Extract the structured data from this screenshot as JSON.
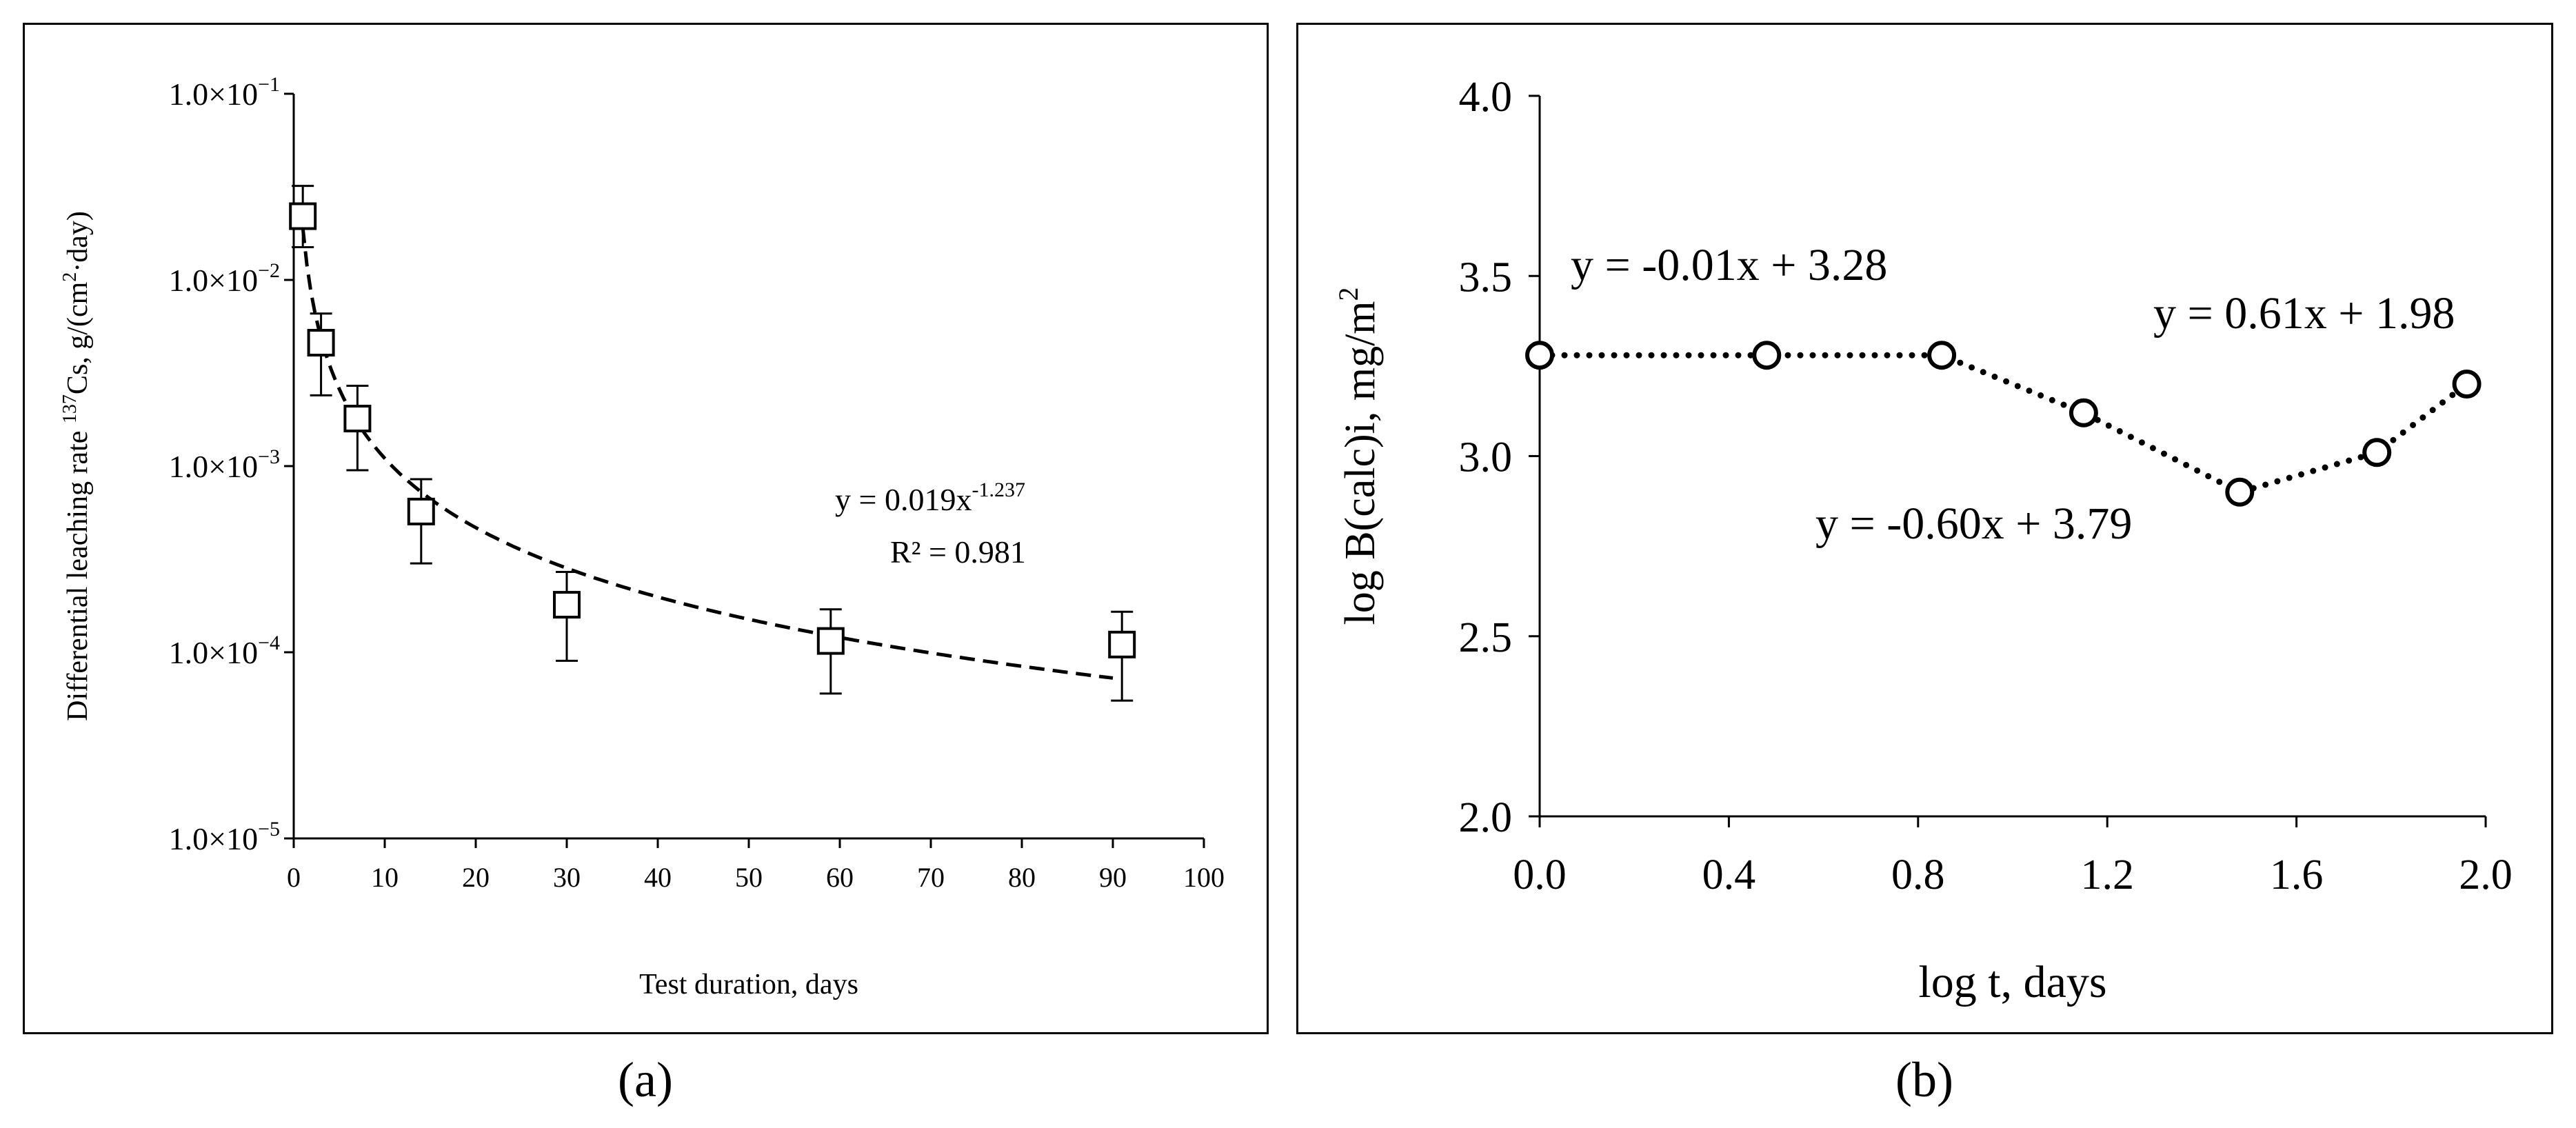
{
  "captions": {
    "a": "(a)",
    "b": "(b)"
  },
  "chart_data": [
    {
      "type": "scatter",
      "id": "a",
      "y_scale": "log",
      "xlabel": "Test duration, days",
      "ylabel_parts": {
        "pre": "Differential leaching rate ",
        "sup1": "137",
        "mid": "Cs, g/(cm",
        "sup2": "2",
        "post": "·day)"
      },
      "xlim": [
        0,
        100
      ],
      "ylim_exp": [
        -5,
        -1
      ],
      "x_ticks": [
        0,
        10,
        20,
        30,
        40,
        50,
        60,
        70,
        80,
        90,
        100
      ],
      "y_ticks": [
        {
          "exp": -1,
          "base": "1.0×10",
          "sup": "−1"
        },
        {
          "exp": -2,
          "base": "1.0×10",
          "sup": "−2"
        },
        {
          "exp": -3,
          "base": "1.0×10",
          "sup": "−3"
        },
        {
          "exp": -4,
          "base": "1.0×10",
          "sup": "−4"
        },
        {
          "exp": -5,
          "base": "1.0×10",
          "sup": "−5"
        }
      ],
      "points": [
        {
          "x": 1,
          "y": 0.022,
          "low": 0.015,
          "high": 0.032
        },
        {
          "x": 3,
          "y": 0.0046,
          "low": 0.0024,
          "high": 0.0066
        },
        {
          "x": 7,
          "y": 0.0018,
          "low": 0.00095,
          "high": 0.0027
        },
        {
          "x": 14,
          "y": 0.00057,
          "low": 0.0003,
          "high": 0.00085
        },
        {
          "x": 30,
          "y": 0.00018,
          "low": 9e-05,
          "high": 0.00027
        },
        {
          "x": 59,
          "y": 0.000115,
          "low": 6e-05,
          "high": 0.00017
        },
        {
          "x": 91,
          "y": 0.00011,
          "low": 5.5e-05,
          "high": 0.000165
        }
      ],
      "fit": {
        "a": 0.019,
        "b": -1.237,
        "x_range": [
          1,
          90
        ]
      },
      "annotations": {
        "equation_base": "y = 0.019x",
        "equation_exp": "-1.237",
        "r2": "R² = 0.981"
      }
    },
    {
      "type": "line",
      "id": "b",
      "xlabel": "log t, days",
      "ylabel": "log B(calc)i, mg/m",
      "ylabel_sup": "2",
      "xlim": [
        0,
        2
      ],
      "ylim": [
        2,
        4
      ],
      "x_ticks": [
        "0.0",
        "0.4",
        "0.8",
        "1.2",
        "1.6",
        "2.0"
      ],
      "y_ticks": [
        "2.0",
        "2.5",
        "3.0",
        "3.5",
        "4.0"
      ],
      "points": [
        {
          "x": 0.0,
          "y": 3.28
        },
        {
          "x": 0.48,
          "y": 3.28
        },
        {
          "x": 0.85,
          "y": 3.28
        },
        {
          "x": 1.15,
          "y": 3.12
        },
        {
          "x": 1.48,
          "y": 2.9
        },
        {
          "x": 1.77,
          "y": 3.01
        },
        {
          "x": 1.96,
          "y": 3.2
        }
      ],
      "annotations": [
        "y = -0.01x + 3.28",
        "y = 0.61x + 1.98",
        "y = -0.60x + 3.79"
      ]
    }
  ]
}
